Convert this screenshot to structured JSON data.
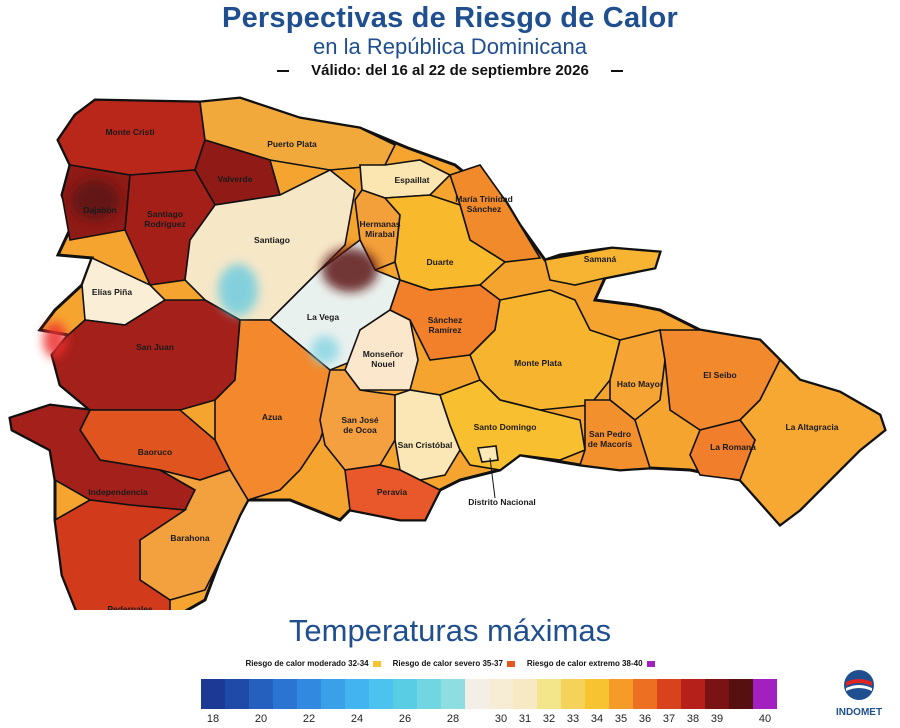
{
  "header": {
    "title": "Perspectivas de Riesgo de Calor",
    "subtitle": "en la República Dominicana",
    "validity": "Válido: del 16  al 22 de septiembre 2026"
  },
  "provinces": [
    {
      "name": "Monte Cristi",
      "color": "#b9261a"
    },
    {
      "name": "Puerto Plata",
      "color": "#f2a93b"
    },
    {
      "name": "Valverde",
      "color": "#8f1a16"
    },
    {
      "name": "Dajabón",
      "color": "#8f1a16"
    },
    {
      "name": "Santiago Rodríguez",
      "color": "#a31f18"
    },
    {
      "name": "Santiago",
      "color": "#f6e7c7"
    },
    {
      "name": "Espaillat",
      "color": "#fbe5b0"
    },
    {
      "name": "María Trinidad Sánchez",
      "color": "#f08a2b"
    },
    {
      "name": "Hermanas Mirabal",
      "color": "#f3a03a"
    },
    {
      "name": "Duarte",
      "color": "#f8b92c"
    },
    {
      "name": "Samaná",
      "color": "#f6b432"
    },
    {
      "name": "Elías Piña",
      "color": "#fbeed6"
    },
    {
      "name": "La Vega",
      "color": "#e9f1ee"
    },
    {
      "name": "San Juan",
      "color": "#a4201a"
    },
    {
      "name": "Monseñor Nouel",
      "color": "#fbe7cc"
    },
    {
      "name": "Sánchez Ramírez",
      "color": "#f2802a"
    },
    {
      "name": "Monte Plata",
      "color": "#f7b42e"
    },
    {
      "name": "Hato Mayor",
      "color": "#f6a434"
    },
    {
      "name": "El Seibo",
      "color": "#f3892d"
    },
    {
      "name": "La Altagracia",
      "color": "#f6a832"
    },
    {
      "name": "Azua",
      "color": "#f3892c"
    },
    {
      "name": "San José de Ocoa",
      "color": "#f4a040"
    },
    {
      "name": "San Cristóbal",
      "color": "#fbe7b6"
    },
    {
      "name": "Santo Domingo",
      "color": "#f8bf30"
    },
    {
      "name": "San Pedro de Macorís",
      "color": "#f3902e"
    },
    {
      "name": "La Romana",
      "color": "#f07e2a"
    },
    {
      "name": "Baoruco",
      "color": "#e0541f"
    },
    {
      "name": "Independencia",
      "color": "#a3211a"
    },
    {
      "name": "Barahona",
      "color": "#f3a03e"
    },
    {
      "name": "Peravia",
      "color": "#e8582a"
    },
    {
      "name": "Pedernales",
      "color": "#d23a1c"
    },
    {
      "name": "Distrito Nacional",
      "color": "#fbe9b8"
    }
  ],
  "legend": {
    "title": "Temperaturas máximas",
    "risks": [
      {
        "label": "Riesgo de calor moderado 32-34",
        "color": "#f8c330"
      },
      {
        "label": "Riesgo de calor severo 35-37",
        "color": "#e4571e"
      },
      {
        "label": "Riesgo de calor extremo  38-40",
        "color": "#a21fc0"
      }
    ],
    "scale": [
      {
        "value": "18",
        "color": "#1c3a95"
      },
      {
        "value": "",
        "color": "#1f4aa8"
      },
      {
        "value": "20",
        "color": "#2560bf"
      },
      {
        "value": "",
        "color": "#2b74d2"
      },
      {
        "value": "22",
        "color": "#328ae0"
      },
      {
        "value": "",
        "color": "#3aa0e8"
      },
      {
        "value": "24",
        "color": "#42b4ef"
      },
      {
        "value": "",
        "color": "#4cc3ee"
      },
      {
        "value": "26",
        "color": "#58cde4"
      },
      {
        "value": "",
        "color": "#72d6e2"
      },
      {
        "value": "28",
        "color": "#8edde0"
      },
      {
        "value": "",
        "color": "#f3efe6"
      },
      {
        "value": "30",
        "color": "#f7ecd4"
      },
      {
        "value": "31",
        "color": "#f6e9c3"
      },
      {
        "value": "32",
        "color": "#f2e58a"
      },
      {
        "value": "33",
        "color": "#f5d35a"
      },
      {
        "value": "34",
        "color": "#f8c330"
      },
      {
        "value": "35",
        "color": "#f49b28"
      },
      {
        "value": "36",
        "color": "#ed6f22"
      },
      {
        "value": "37",
        "color": "#d8421d"
      },
      {
        "value": "38",
        "color": "#b5201a"
      },
      {
        "value": "39",
        "color": "#7a1313"
      },
      {
        "value": "",
        "color": "#561010"
      },
      {
        "value": "40",
        "color": "#a21fc0"
      }
    ]
  },
  "logo": {
    "name": "INDOMET",
    "icon": "indomet-logo-icon"
  }
}
